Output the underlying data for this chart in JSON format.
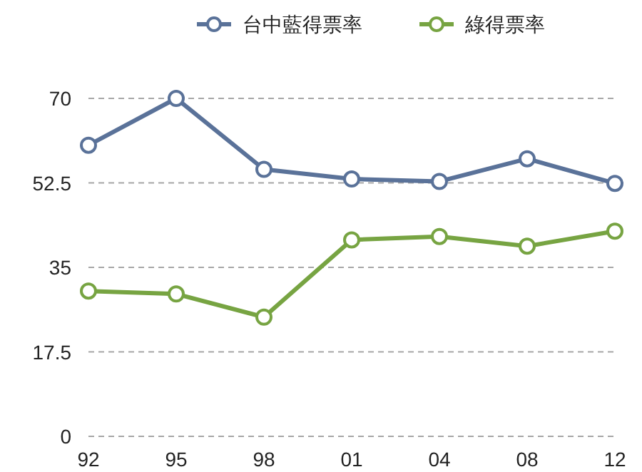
{
  "chart_data": {
    "type": "line",
    "categories": [
      "92",
      "95",
      "98",
      "01",
      "04",
      "08",
      "12"
    ],
    "series": [
      {
        "name": "台中藍得票率",
        "color": "#5a7299",
        "values": [
          60.3,
          70,
          55.3,
          53.3,
          52.8,
          57.5,
          52.4
        ]
      },
      {
        "name": "綠得票率",
        "color": "#77a442",
        "values": [
          30.1,
          29.5,
          24.7,
          40.7,
          41.4,
          39.4,
          42.5
        ]
      }
    ],
    "ylim": [
      0,
      70
    ],
    "yticks": [
      0,
      17.5,
      35,
      52.5,
      70
    ],
    "grid": "y",
    "legend": "top",
    "marker": "circle",
    "line_style": "solid"
  }
}
